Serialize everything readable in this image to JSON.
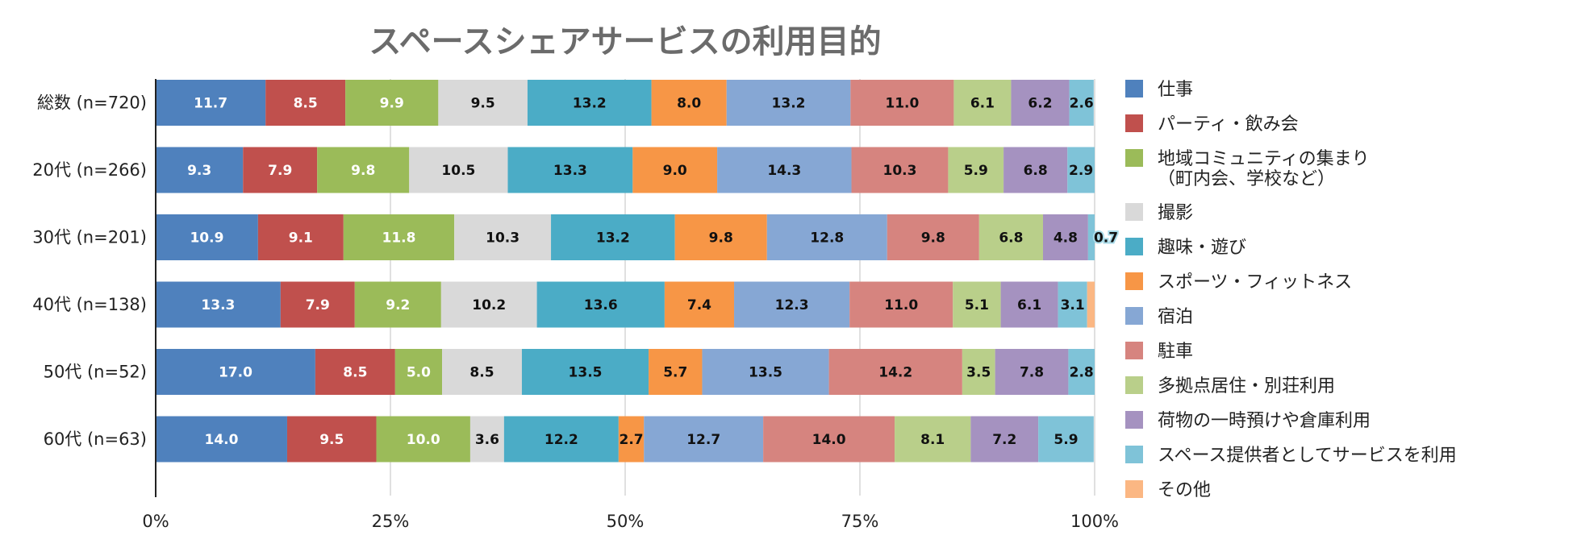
{
  "chart_data": {
    "type": "bar",
    "orientation": "horizontal",
    "stacked": "percent",
    "title": "スペースシェアサービスの利用目的",
    "xlabel": "",
    "ylabel": "",
    "xlim": [
      0,
      100
    ],
    "x_ticks": [
      "0%",
      "25%",
      "50%",
      "75%",
      "100%"
    ],
    "grid": true,
    "legend_position": "right",
    "categories": [
      "総数 (n=720)",
      "20代 (n=266)",
      "30代 (n=201)",
      "40代 (n=138)",
      "50代 (n=52)",
      "60代 (n=63)"
    ],
    "series": [
      {
        "name": "仕事",
        "color": "#4f81bd",
        "label_color": "#ffffff",
        "values": [
          11.7,
          9.3,
          10.9,
          13.3,
          17.0,
          14.0
        ]
      },
      {
        "name": "パーティ・飲み会",
        "color": "#c0504d",
        "label_color": "#ffffff",
        "values": [
          8.5,
          7.9,
          9.1,
          7.9,
          8.5,
          9.5
        ]
      },
      {
        "name": "地域コミュニティの集まり\n（町内会、学校など）",
        "color": "#9bbb59",
        "label_color": "#ffffff",
        "values": [
          9.9,
          9.8,
          11.8,
          9.2,
          5.0,
          10.0
        ]
      },
      {
        "name": "撮影",
        "color": "#d9d9d9",
        "label_color": "#111111",
        "values": [
          9.5,
          10.5,
          10.3,
          10.2,
          8.5,
          3.6
        ]
      },
      {
        "name": "趣味・遊び",
        "color": "#4bacc6",
        "label_color": "#111111",
        "values": [
          13.2,
          13.3,
          13.2,
          13.6,
          13.5,
          12.2
        ]
      },
      {
        "name": "スポーツ・フィットネス",
        "color": "#f79646",
        "label_color": "#111111",
        "values": [
          8.0,
          9.0,
          9.8,
          7.4,
          5.7,
          2.7
        ]
      },
      {
        "name": "宿泊",
        "color": "#86a7d4",
        "label_color": "#111111",
        "values": [
          13.2,
          14.3,
          12.8,
          12.3,
          13.5,
          12.7
        ]
      },
      {
        "name": "駐車",
        "color": "#d6847f",
        "label_color": "#111111",
        "values": [
          11.0,
          10.3,
          9.8,
          11.0,
          14.2,
          14.0
        ]
      },
      {
        "name": "多拠点居住・別荘利用",
        "color": "#b9cf8a",
        "label_color": "#111111",
        "values": [
          6.1,
          5.9,
          6.8,
          5.1,
          3.5,
          8.1
        ]
      },
      {
        "name": "荷物の一時預けや倉庫利用",
        "color": "#a592c0",
        "label_color": "#111111",
        "values": [
          6.2,
          6.8,
          4.8,
          6.1,
          7.8,
          7.2
        ]
      },
      {
        "name": "スペース提供者としてサービスを利用",
        "color": "#7fc3d8",
        "label_color": "#111111",
        "values": [
          2.6,
          2.9,
          0.7,
          3.1,
          2.8,
          5.9
        ]
      },
      {
        "name": "その他",
        "color": "#fbb783",
        "label_color": "#111111",
        "values": [
          0.0,
          0.0,
          0.0,
          0.8,
          0.0,
          0.0
        ]
      }
    ],
    "hidden_labels": [
      [
        0,
        11
      ],
      [
        1,
        11
      ],
      [
        2,
        11
      ],
      [
        3,
        11
      ],
      [
        4,
        11
      ],
      [
        5,
        11
      ]
    ]
  }
}
